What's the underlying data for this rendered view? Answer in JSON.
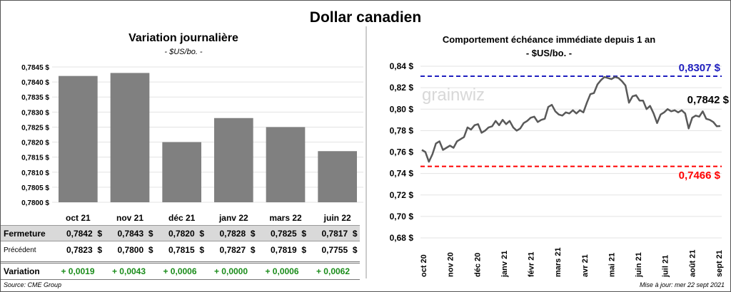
{
  "title": "Dollar canadien",
  "left": {
    "title": "Variation  journalière",
    "subtitle": "- $US/bo. -"
  },
  "right": {
    "title": "Comportement échéance immédiate depuis 1 an",
    "subtitle": "- $US/bo. -",
    "watermark": "grainwiz"
  },
  "table": {
    "rows": [
      {
        "label": "Fermeture",
        "values": [
          "0,7842  $",
          "0,7843  $",
          "0,7820  $",
          "0,7828  $",
          "0,7825  $",
          "0,7817  $"
        ]
      },
      {
        "label": "Précédent",
        "values": [
          "0,7823  $",
          "0,7800  $",
          "0,7815  $",
          "0,7827  $",
          "0,7819  $",
          "0,7755  $"
        ]
      },
      {
        "label": "Variation",
        "values": [
          "+ 0,0019",
          "+ 0,0043",
          "+ 0,0006",
          "+ 0,0000",
          "+ 0,0006",
          "+ 0,0062"
        ]
      }
    ]
  },
  "source": "Source: CME Group",
  "update": "Mise à jour: mer 22 sept 2021",
  "colors": {
    "bar": "#808080",
    "line": "#595959",
    "high": "#1f1fbf",
    "low": "#ff0000",
    "variation": "#1a8c1a"
  },
  "chart_data": [
    {
      "type": "bar",
      "title": "Variation  journalière",
      "categories": [
        "oct 21",
        "nov 21",
        "déc 21",
        "janv 22",
        "mars 22",
        "juin 22"
      ],
      "values": [
        0.7842,
        0.7843,
        0.782,
        0.7828,
        0.7825,
        0.7817
      ],
      "ylim": [
        0.78,
        0.7845
      ],
      "yticks": [
        "0,7800 $",
        "0,7805 $",
        "0,7810 $",
        "0,7815 $",
        "0,7820 $",
        "0,7825 $",
        "0,7830 $",
        "0,7835 $",
        "0,7840 $",
        "0,7845 $"
      ]
    },
    {
      "type": "line",
      "title": "Comportement échéance immédiate depuis 1 an",
      "ylim": [
        0.68,
        0.84
      ],
      "yticks": [
        "0,68 $",
        "0,70 $",
        "0,72 $",
        "0,74 $",
        "0,76 $",
        "0,78 $",
        "0,80 $",
        "0,82 $",
        "0,84 $"
      ],
      "xticks": [
        "oct 20",
        "nov 20",
        "déc 20",
        "janv 21",
        "févr 21",
        "mars 21",
        "avr 21",
        "mai 21",
        "juin 21",
        "juil 21",
        "août 21",
        "sept 21"
      ],
      "values": [
        0.762,
        0.76,
        0.751,
        0.758,
        0.768,
        0.77,
        0.762,
        0.764,
        0.766,
        0.764,
        0.77,
        0.772,
        0.774,
        0.783,
        0.781,
        0.785,
        0.786,
        0.778,
        0.78,
        0.783,
        0.784,
        0.789,
        0.785,
        0.79,
        0.786,
        0.789,
        0.783,
        0.78,
        0.782,
        0.787,
        0.789,
        0.792,
        0.793,
        0.788,
        0.79,
        0.791,
        0.802,
        0.804,
        0.798,
        0.795,
        0.794,
        0.797,
        0.796,
        0.799,
        0.796,
        0.799,
        0.797,
        0.806,
        0.814,
        0.815,
        0.823,
        0.827,
        0.83,
        0.829,
        0.828,
        0.83,
        0.829,
        0.826,
        0.822,
        0.806,
        0.812,
        0.813,
        0.808,
        0.808,
        0.8,
        0.803,
        0.796,
        0.787,
        0.795,
        0.797,
        0.8,
        0.798,
        0.799,
        0.797,
        0.799,
        0.796,
        0.782,
        0.792,
        0.794,
        0.793,
        0.798,
        0.791,
        0.79,
        0.788,
        0.784,
        0.7842
      ],
      "high": 0.8307,
      "high_label": "0,8307  $",
      "low": 0.7466,
      "low_label": "0,7466  $",
      "last_label": "0,7842 $"
    }
  ]
}
